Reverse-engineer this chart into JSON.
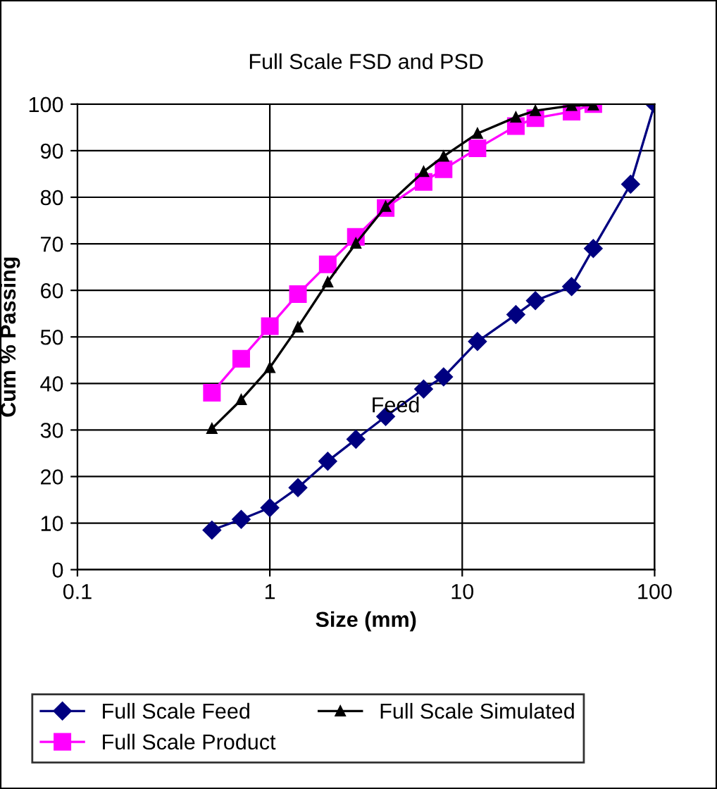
{
  "chart_data": {
    "type": "line",
    "title": "Full Scale FSD and PSD",
    "xlabel": "Size (mm)",
    "ylabel": "Cum % Passing",
    "log": "x",
    "xlim": [
      0.1,
      100
    ],
    "xticks": [
      0.1,
      1,
      10,
      100
    ],
    "ylim": [
      0,
      100
    ],
    "yticks": [
      0,
      10,
      20,
      30,
      40,
      50,
      60,
      70,
      80,
      90,
      100
    ],
    "grid": true,
    "legend": "bottom",
    "annotations": [
      {
        "text": "Feed",
        "x": 4.5,
        "y": 35
      }
    ],
    "series": [
      {
        "name": "Full Scale Feed",
        "color": "#000080",
        "marker": "diamond",
        "x": [
          0.5,
          0.71,
          1,
          1.4,
          2,
          2.8,
          4,
          6.3,
          8,
          12,
          19,
          24,
          37,
          48,
          75,
          100
        ],
        "values": [
          8.5,
          10.8,
          13.3,
          17.6,
          23.3,
          28,
          32.9,
          38.8,
          41.4,
          49,
          54.8,
          57.8,
          60.8,
          69,
          82.8,
          100
        ]
      },
      {
        "name": "Full Scale Product",
        "color": "#ff00ff",
        "marker": "square",
        "x": [
          0.5,
          0.71,
          1,
          1.4,
          2,
          2.8,
          4,
          6.3,
          8,
          12,
          19,
          24,
          37,
          48
        ],
        "values": [
          38,
          45.3,
          52.3,
          59.2,
          65.6,
          71.5,
          77.7,
          83.3,
          86,
          90.5,
          95.3,
          97,
          98.4,
          100
        ]
      },
      {
        "name": "Full Scale Simulated",
        "color": "#000000",
        "marker": "triangle",
        "x": [
          0.5,
          0.71,
          1,
          1.4,
          2,
          2.8,
          4,
          6.3,
          8,
          12,
          19,
          24,
          37,
          48
        ],
        "values": [
          30.3,
          36.5,
          43.4,
          52.1,
          61.8,
          70.1,
          78,
          85.5,
          88.8,
          93.7,
          97.2,
          98.6,
          99.7,
          99.8
        ]
      }
    ]
  }
}
